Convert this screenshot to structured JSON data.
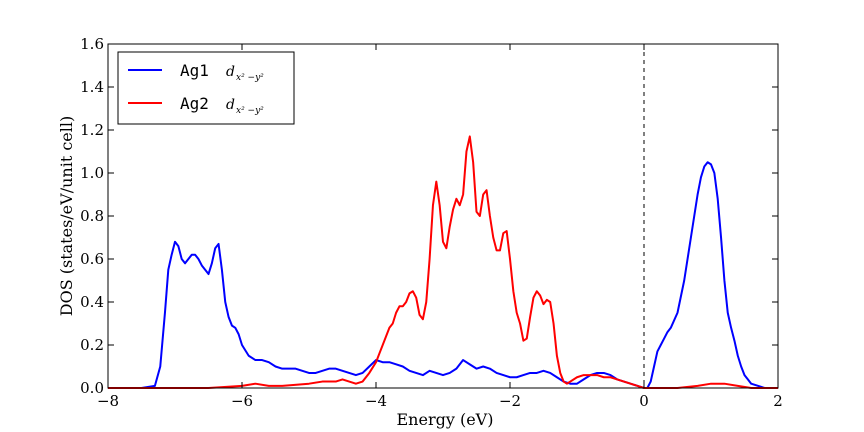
{
  "chart_data": {
    "type": "line",
    "title": "",
    "xlabel": "Energy (eV)",
    "ylabel": "DOS (states/eV/unit cell)",
    "xlim": [
      -8,
      2
    ],
    "ylim": [
      0,
      1.6
    ],
    "x_ticks": [
      "−8",
      "−6",
      "−4",
      "−2",
      "0",
      "2"
    ],
    "y_ticks": [
      "0.0",
      "0.2",
      "0.4",
      "0.6",
      "0.8",
      "1.0",
      "1.2",
      "1.4",
      "1.6"
    ],
    "fermi_level": 0,
    "legend_position": "top-left",
    "series": [
      {
        "name": "Ag1",
        "label_sub": "x² −y²",
        "color": "#0000ff",
        "x": [
          -8.0,
          -7.5,
          -7.3,
          -7.22,
          -7.15,
          -7.1,
          -7.05,
          -7.0,
          -6.95,
          -6.9,
          -6.85,
          -6.8,
          -6.75,
          -6.7,
          -6.65,
          -6.6,
          -6.55,
          -6.5,
          -6.45,
          -6.4,
          -6.35,
          -6.3,
          -6.25,
          -6.2,
          -6.15,
          -6.1,
          -6.05,
          -6.0,
          -5.9,
          -5.8,
          -5.7,
          -5.6,
          -5.5,
          -5.4,
          -5.3,
          -5.2,
          -5.1,
          -5.0,
          -4.9,
          -4.8,
          -4.7,
          -4.6,
          -4.5,
          -4.4,
          -4.3,
          -4.2,
          -4.1,
          -4.0,
          -3.9,
          -3.8,
          -3.7,
          -3.6,
          -3.5,
          -3.4,
          -3.3,
          -3.2,
          -3.1,
          -3.0,
          -2.9,
          -2.8,
          -2.7,
          -2.6,
          -2.5,
          -2.4,
          -2.3,
          -2.2,
          -2.1,
          -2.0,
          -1.9,
          -1.8,
          -1.7,
          -1.6,
          -1.5,
          -1.4,
          -1.3,
          -1.2,
          -1.1,
          -1.0,
          -0.9,
          -0.8,
          -0.7,
          -0.6,
          -0.5,
          -0.4,
          -0.3,
          -0.2,
          -0.1,
          0.0,
          0.05,
          0.1,
          0.15,
          0.2,
          0.25,
          0.3,
          0.35,
          0.4,
          0.5,
          0.6,
          0.7,
          0.8,
          0.85,
          0.9,
          0.95,
          1.0,
          1.05,
          1.1,
          1.15,
          1.2,
          1.25,
          1.3,
          1.35,
          1.4,
          1.45,
          1.5,
          1.55,
          1.6,
          1.7,
          1.8,
          1.9,
          2.0
        ],
        "y": [
          0.0,
          0.0,
          0.01,
          0.1,
          0.35,
          0.55,
          0.62,
          0.68,
          0.66,
          0.6,
          0.58,
          0.6,
          0.62,
          0.62,
          0.6,
          0.57,
          0.55,
          0.53,
          0.58,
          0.65,
          0.67,
          0.55,
          0.4,
          0.33,
          0.29,
          0.28,
          0.25,
          0.2,
          0.15,
          0.13,
          0.13,
          0.12,
          0.1,
          0.09,
          0.09,
          0.09,
          0.08,
          0.07,
          0.07,
          0.08,
          0.09,
          0.09,
          0.08,
          0.07,
          0.06,
          0.07,
          0.1,
          0.13,
          0.12,
          0.12,
          0.11,
          0.1,
          0.08,
          0.07,
          0.06,
          0.08,
          0.07,
          0.06,
          0.07,
          0.09,
          0.13,
          0.11,
          0.09,
          0.1,
          0.09,
          0.07,
          0.06,
          0.05,
          0.05,
          0.06,
          0.07,
          0.07,
          0.08,
          0.07,
          0.05,
          0.03,
          0.02,
          0.02,
          0.04,
          0.06,
          0.07,
          0.07,
          0.06,
          0.04,
          0.03,
          0.02,
          0.01,
          0.0,
          0.0,
          0.03,
          0.1,
          0.17,
          0.2,
          0.23,
          0.26,
          0.28,
          0.35,
          0.5,
          0.7,
          0.9,
          0.98,
          1.03,
          1.05,
          1.04,
          1.0,
          0.88,
          0.7,
          0.5,
          0.35,
          0.28,
          0.22,
          0.15,
          0.1,
          0.06,
          0.04,
          0.02,
          0.01,
          0.0,
          0.0,
          0.0
        ]
      },
      {
        "name": "Ag2",
        "label_sub": "x² −y²",
        "color": "#ff0000",
        "x": [
          -8.0,
          -7.0,
          -6.5,
          -6.0,
          -5.8,
          -5.6,
          -5.4,
          -5.0,
          -4.8,
          -4.6,
          -4.5,
          -4.4,
          -4.3,
          -4.2,
          -4.1,
          -4.0,
          -3.9,
          -3.85,
          -3.8,
          -3.75,
          -3.7,
          -3.65,
          -3.6,
          -3.55,
          -3.5,
          -3.45,
          -3.4,
          -3.35,
          -3.3,
          -3.25,
          -3.2,
          -3.15,
          -3.1,
          -3.05,
          -3.0,
          -2.95,
          -2.9,
          -2.85,
          -2.8,
          -2.75,
          -2.7,
          -2.65,
          -2.6,
          -2.55,
          -2.5,
          -2.45,
          -2.4,
          -2.35,
          -2.3,
          -2.25,
          -2.2,
          -2.15,
          -2.1,
          -2.05,
          -2.0,
          -1.95,
          -1.9,
          -1.85,
          -1.8,
          -1.75,
          -1.7,
          -1.65,
          -1.6,
          -1.55,
          -1.5,
          -1.45,
          -1.4,
          -1.35,
          -1.3,
          -1.25,
          -1.2,
          -1.15,
          -1.1,
          -1.0,
          -0.9,
          -0.8,
          -0.7,
          -0.6,
          -0.5,
          -0.4,
          -0.3,
          -0.2,
          -0.1,
          0.0,
          0.2,
          0.5,
          0.8,
          1.0,
          1.2,
          1.4,
          1.6,
          2.0
        ],
        "y": [
          0.0,
          0.0,
          0.0,
          0.01,
          0.02,
          0.01,
          0.01,
          0.02,
          0.03,
          0.03,
          0.04,
          0.03,
          0.02,
          0.03,
          0.07,
          0.12,
          0.2,
          0.24,
          0.28,
          0.3,
          0.35,
          0.38,
          0.38,
          0.4,
          0.44,
          0.45,
          0.42,
          0.34,
          0.32,
          0.4,
          0.6,
          0.85,
          0.96,
          0.85,
          0.68,
          0.65,
          0.75,
          0.83,
          0.88,
          0.85,
          0.9,
          1.1,
          1.17,
          1.05,
          0.82,
          0.8,
          0.9,
          0.92,
          0.8,
          0.7,
          0.64,
          0.64,
          0.72,
          0.73,
          0.6,
          0.45,
          0.35,
          0.3,
          0.22,
          0.23,
          0.33,
          0.42,
          0.45,
          0.43,
          0.39,
          0.41,
          0.4,
          0.3,
          0.15,
          0.07,
          0.03,
          0.02,
          0.03,
          0.05,
          0.06,
          0.06,
          0.06,
          0.05,
          0.05,
          0.04,
          0.03,
          0.02,
          0.01,
          0.0,
          0.0,
          0.0,
          0.01,
          0.02,
          0.02,
          0.01,
          0.0,
          0.0
        ]
      }
    ]
  }
}
